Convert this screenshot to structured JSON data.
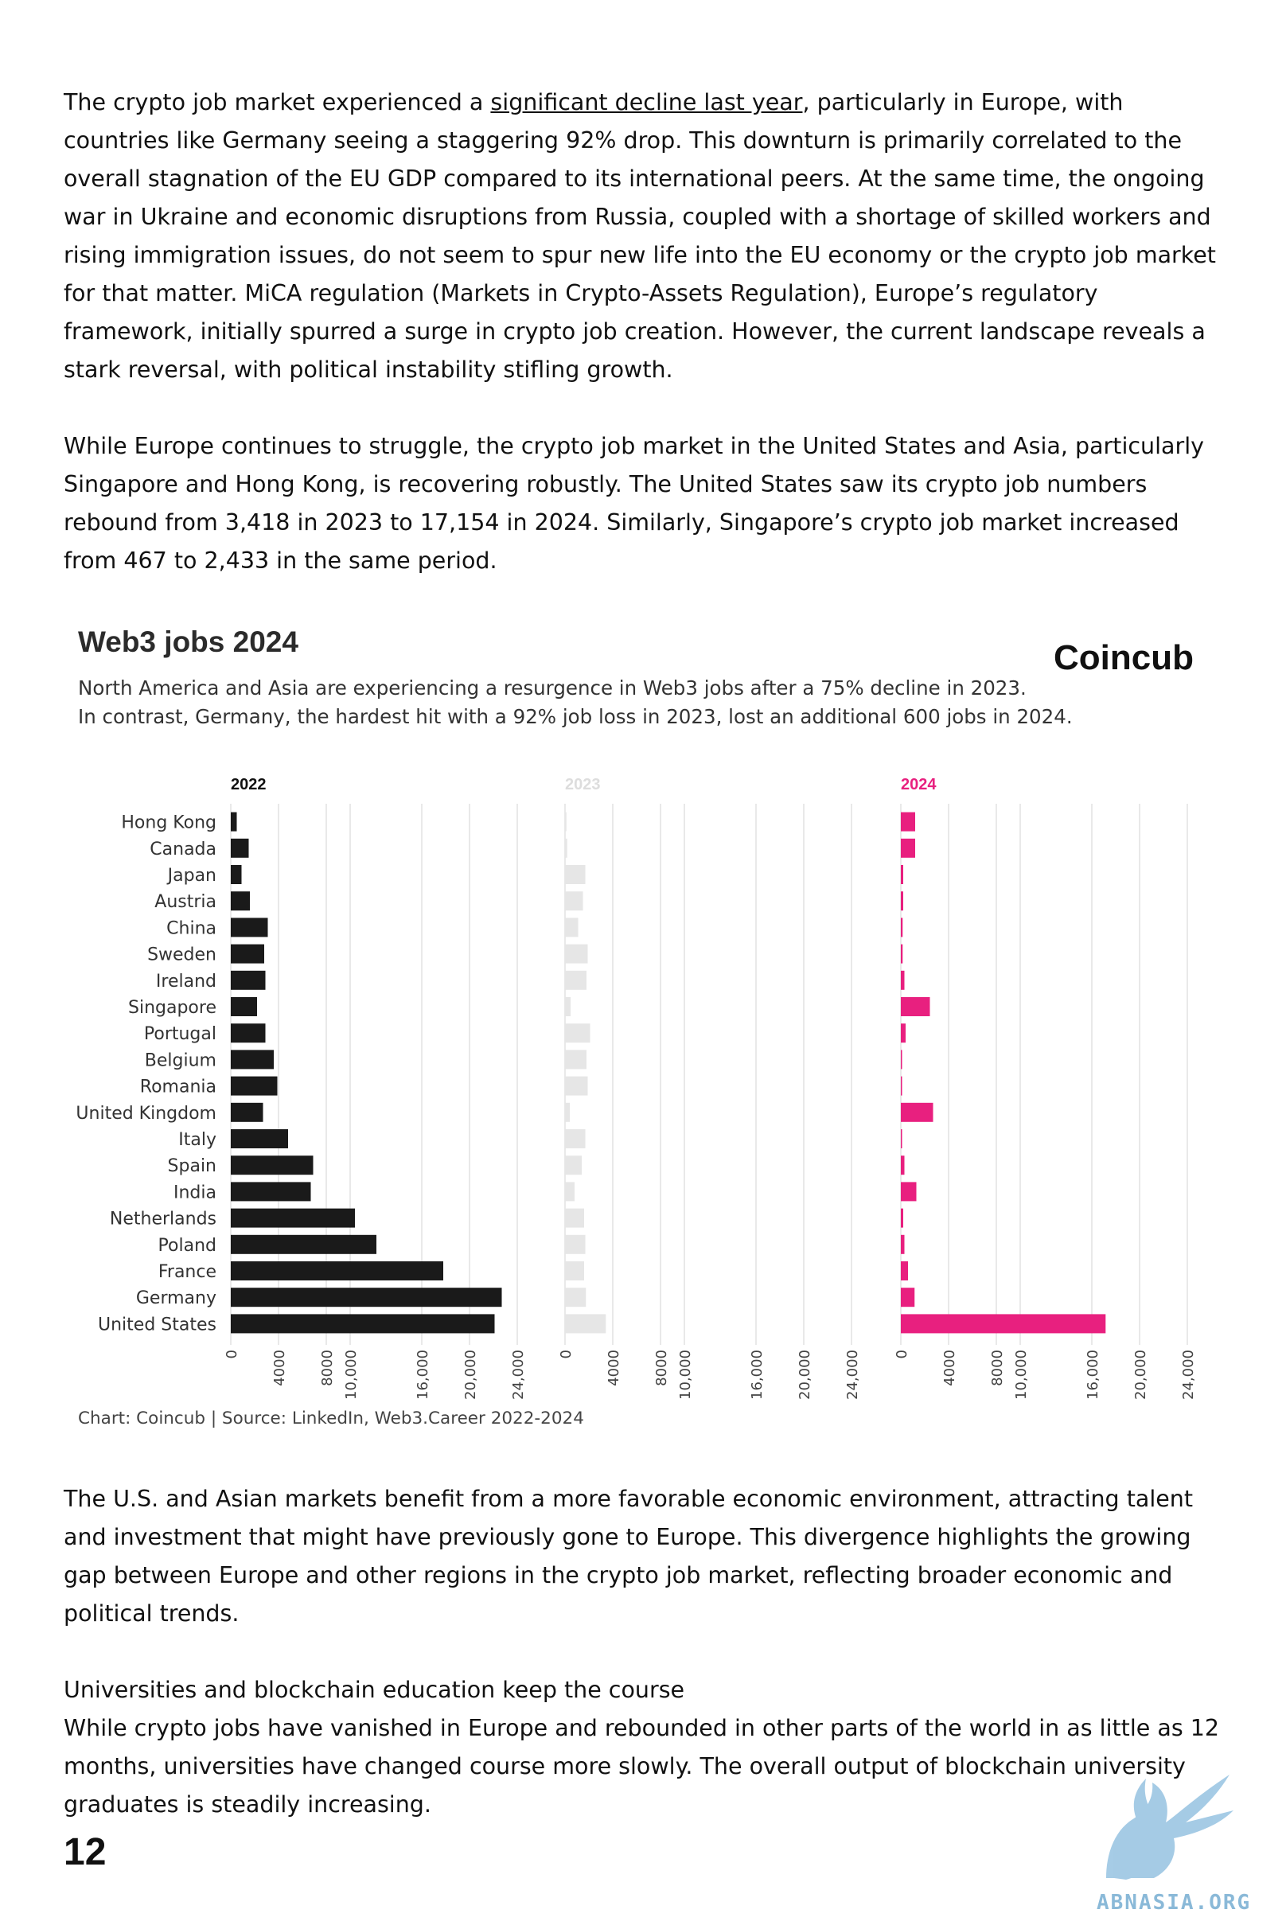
{
  "paragraphs": {
    "p1_before_link": "The crypto job market experienced a ",
    "p1_link": "significant decline last year",
    "p1_after_link": ", particularly in Europe, with countries like Germany seeing a staggering 92% drop. This downturn is primarily correlated to the overall stagnation of the EU GDP compared to its international peers. At the same time, the ongoing war in Ukraine and economic disruptions from Russia, coupled with a shortage of skilled workers and rising immigration issues, do not seem to spur new life into the EU economy or the crypto job market for that matter. MiCA regulation (Markets in Crypto-Assets Regulation), Europe’s regulatory framework, initially spurred a surge in crypto job creation. However, the current landscape reveals a stark reversal, with political instability stifling growth.",
    "p2": "While Europe continues to struggle, the crypto job market in the United States and Asia, particularly Singapore and Hong Kong, is recovering robustly. The United States saw its crypto job numbers rebound from 3,418 in 2023 to 17,154 in 2024. Similarly, Singapore’s crypto job market increased from 467 to 2,433 in the same period.",
    "p3": "The U.S. and Asian markets benefit from a more favorable economic environment, attracting talent and investment that might have previously gone to Europe. This divergence highlights the growing gap between Europe and other regions in the crypto job market, reflecting broader economic and political trends.",
    "section_heading": "Universities and blockchain education keep the course",
    "p4": "While crypto jobs have vanished in Europe and rebounded in other parts of the world in as little as 12 months, universities have changed course more slowly. The overall output of blockchain university graduates is steadily increasing."
  },
  "chart_header": {
    "title": "Web3 jobs 2024",
    "brand": "Coincub",
    "subtitle_line1": "North America and Asia are experiencing a resurgence in Web3 jobs after a 75% decline in 2023.",
    "subtitle_line2": "In contrast, Germany, the hardest hit with a 92% job loss in 2023, lost an additional 600 jobs in 2024.",
    "source": "Chart: Coincub | Source: LinkedIn, Web3.Career 2022-2024"
  },
  "colors": {
    "series_2022": "#1a1a1a",
    "series_2023": "#e6e6e6",
    "series_2024": "#e8207f",
    "grid": "#e9e9e9"
  },
  "chart_data": {
    "type": "bar",
    "orientation": "horizontal",
    "categories": [
      "Hong Kong",
      "Canada",
      "Japan",
      "Austria",
      "China",
      "Sweden",
      "Ireland",
      "Singapore",
      "Portugal",
      "Belgium",
      "Romania",
      "United Kingdom",
      "Italy",
      "Spain",
      "India",
      "Netherlands",
      "Poland",
      "France",
      "Germany",
      "United States"
    ],
    "series": [
      {
        "name": "2022",
        "values": [
          500,
          1500,
          900,
          1600,
          3100,
          2800,
          2900,
          2200,
          2900,
          3600,
          3900,
          2700,
          4800,
          6900,
          6700,
          10400,
          12200,
          17800,
          22700,
          22100
        ]
      },
      {
        "name": "2023",
        "values": [
          120,
          180,
          1700,
          1500,
          1100,
          1900,
          1800,
          467,
          2100,
          1800,
          1900,
          400,
          1700,
          1400,
          800,
          1600,
          1700,
          1600,
          1750,
          3418
        ]
      },
      {
        "name": "2024",
        "values": [
          1200,
          1200,
          200,
          200,
          150,
          150,
          300,
          2433,
          400,
          100,
          100,
          2700,
          100,
          300,
          1300,
          200,
          300,
          600,
          1150,
          17154
        ]
      }
    ],
    "xlim": [
      0,
      24000
    ],
    "x_ticks": [
      "0",
      "4000",
      "8000",
      "10,000",
      "16,000",
      "20,000",
      "24,000"
    ],
    "x_tick_values": [
      0,
      4000,
      8000,
      10000,
      16000,
      20000,
      24000
    ],
    "grid": true,
    "legend": "panel titles above each panel"
  },
  "footer": {
    "page_number": "12",
    "watermark": "ABNASIA.ORG"
  }
}
